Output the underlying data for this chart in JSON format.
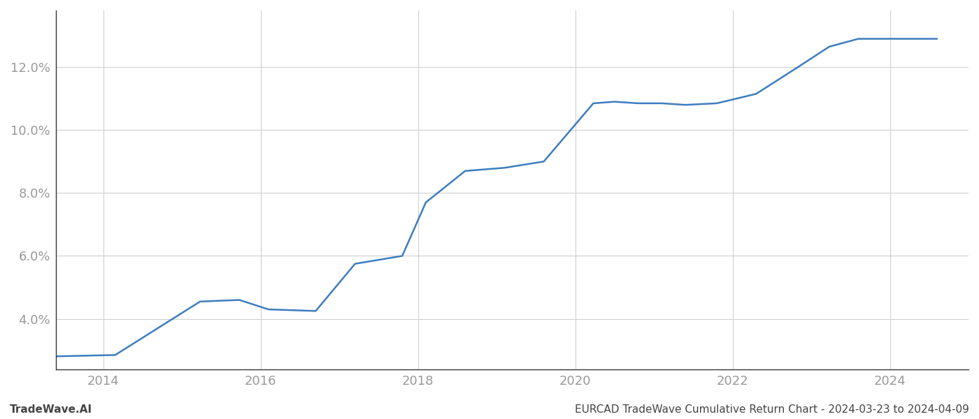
{
  "x_years": [
    2013.23,
    2014.15,
    2015.23,
    2015.73,
    2016.1,
    2016.7,
    2017.2,
    2017.8,
    2018.1,
    2018.6,
    2019.1,
    2019.6,
    2020.23,
    2020.5,
    2020.8,
    2021.1,
    2021.4,
    2021.8,
    2022.3,
    2022.8,
    2023.23,
    2023.6,
    2024.1,
    2024.6
  ],
  "y_values": [
    2.8,
    2.85,
    4.55,
    4.6,
    4.3,
    4.25,
    5.75,
    6.0,
    7.7,
    8.7,
    8.8,
    9.0,
    10.85,
    10.9,
    10.85,
    10.85,
    10.8,
    10.85,
    11.15,
    11.95,
    12.65,
    12.9,
    12.9,
    12.9
  ],
  "line_color": "#3d7dbf",
  "line_width": 1.8,
  "background_color": "#ffffff",
  "grid_color": "#d0d0d0",
  "xlim": [
    2013.4,
    2025.0
  ],
  "ylim": [
    2.4,
    13.8
  ],
  "yticks": [
    4.0,
    6.0,
    8.0,
    10.0,
    12.0
  ],
  "xticks": [
    2014,
    2016,
    2018,
    2020,
    2022,
    2024
  ],
  "footer_left": "TradeWave.AI",
  "footer_right": "EURCAD TradeWave Cumulative Return Chart - 2024-03-23 to 2024-04-09",
  "tick_color": "#999999",
  "tick_fontsize": 13,
  "footer_fontsize": 11
}
